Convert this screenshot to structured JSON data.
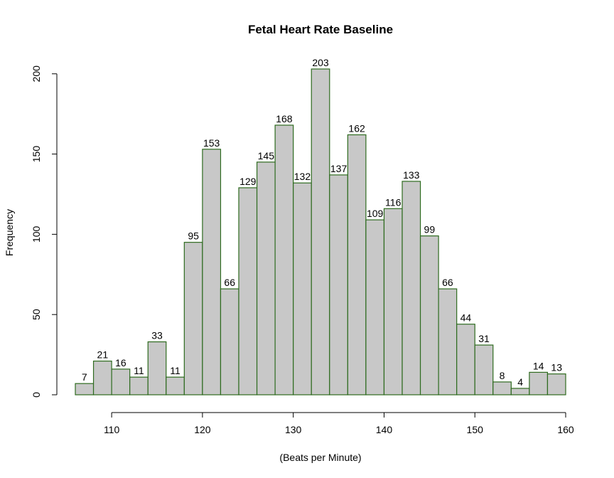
{
  "chart_data": {
    "type": "bar",
    "title": "Fetal Heart Rate Baseline",
    "xlabel": "(Beats per Minute)",
    "ylabel": "Frequency",
    "bin_edges": [
      106,
      108,
      110,
      112,
      114,
      116,
      118,
      120,
      122,
      124,
      126,
      128,
      130,
      132,
      134,
      136,
      138,
      140,
      142,
      144,
      146,
      148,
      150,
      152,
      154,
      156,
      158,
      160
    ],
    "values": [
      7,
      21,
      16,
      11,
      33,
      11,
      95,
      153,
      66,
      129,
      145,
      168,
      132,
      203,
      137,
      162,
      109,
      116,
      133,
      99,
      66,
      44,
      31,
      8,
      4,
      14,
      13
    ],
    "xticks": [
      110,
      120,
      130,
      140,
      150,
      160
    ],
    "yticks": [
      0,
      50,
      100,
      150,
      200
    ],
    "xlim": [
      106,
      160
    ],
    "ylim": [
      0,
      203
    ],
    "grid": false,
    "bar_fill": "#c8c8c8",
    "bar_stroke": "#2e6b1f"
  }
}
